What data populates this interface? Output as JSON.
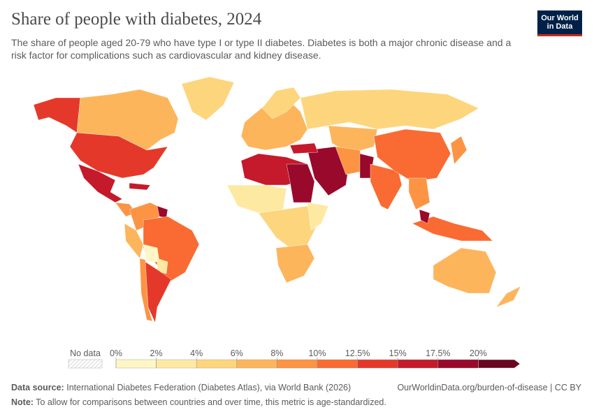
{
  "header": {
    "title": "Share of people with diabetes, 2024",
    "subtitle": "The share of people aged 20-79 who have type I or type II diabetes. Diabetes is both a major chronic disease and a risk factor for complications such as cardiovascular and kidney disease.",
    "logo": [
      "Our World",
      "in Data"
    ]
  },
  "legend": {
    "no_data_label": "No data",
    "ticks": [
      {
        "value": 0,
        "label": "0%"
      },
      {
        "value": 2,
        "label": "2%"
      },
      {
        "value": 4,
        "label": "4%"
      },
      {
        "value": 6,
        "label": "6%"
      },
      {
        "value": 8,
        "label": "8%"
      },
      {
        "value": 10,
        "label": "10%"
      },
      {
        "value": 12.5,
        "label": "12.5%"
      },
      {
        "value": 15,
        "label": "15%"
      },
      {
        "value": 17.5,
        "label": "17.5%"
      },
      {
        "value": 20,
        "label": "20%"
      }
    ],
    "colors": [
      "#fff6c6",
      "#fee9a2",
      "#fdd57c",
      "#fdb55c",
      "#fc9444",
      "#f96b32",
      "#e4392a",
      "#c41a2b",
      "#98092c",
      "#690521"
    ]
  },
  "footer": {
    "source_label": "Data source:",
    "source": "International Diabetes Federation (Diabetes Atlas), via World Bank (2026)",
    "link": "OurWorldinData.org/burden-of-disease | CC BY",
    "note_label": "Note:",
    "note": "To allow for comparisons between countries and over time, this metric is age-standardized."
  }
}
